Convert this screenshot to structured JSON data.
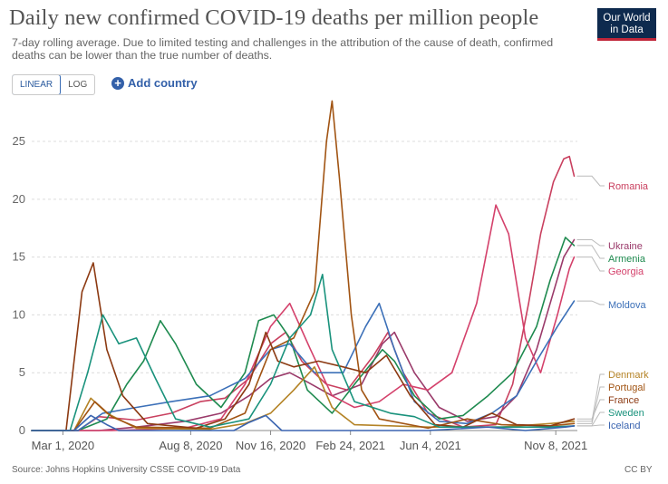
{
  "header": {
    "title": "Daily new confirmed COVID-19 deaths per million people",
    "subtitle": "7-day rolling average. Due to limited testing and challenges in the attribution of the cause of death, confirmed deaths can be lower than the true number of deaths.",
    "logo_line1": "Our World",
    "logo_line2": "in Data"
  },
  "controls": {
    "linear_label": "LINEAR",
    "log_label": "LOG",
    "add_country_label": "Add country",
    "add_icon": "plus-circle-icon"
  },
  "footer": {
    "source": "Source: Johns Hopkins University CSSE COVID-19 Data",
    "license": "CC BY"
  },
  "chart_data": {
    "type": "line",
    "title": "Daily new confirmed COVID-19 deaths per million people",
    "x_tick_labels": [
      "Mar 1, 2020",
      "Aug 8, 2020",
      "Nov 16, 2020",
      "Feb 24, 2021",
      "Jun 4, 2021",
      "Nov 8, 2021"
    ],
    "x_tick_dates": [
      "2020-03-01",
      "2020-08-08",
      "2020-11-16",
      "2021-02-24",
      "2021-06-04",
      "2021-11-08"
    ],
    "xlim": [
      "2020-01-22",
      "2021-12-05"
    ],
    "ylim": [
      0,
      29
    ],
    "y_ticks": [
      0,
      5,
      10,
      15,
      20,
      25
    ],
    "grid": "horizontal dashed",
    "legend": "right, line-end labels",
    "series": [
      {
        "name": "Romania",
        "color": "#c9405f",
        "points": [
          [
            "2020-01-22",
            0
          ],
          [
            "2020-03-20",
            0
          ],
          [
            "2020-04-15",
            1.2
          ],
          [
            "2020-06-01",
            0.9
          ],
          [
            "2020-07-15",
            1.5
          ],
          [
            "2020-08-20",
            2.5
          ],
          [
            "2020-09-20",
            2.8
          ],
          [
            "2020-10-20",
            4.5
          ],
          [
            "2020-11-16",
            7.5
          ],
          [
            "2020-12-05",
            8.5
          ],
          [
            "2020-12-25",
            6
          ],
          [
            "2021-01-25",
            4
          ],
          [
            "2021-02-20",
            3.5
          ],
          [
            "2021-03-25",
            6.5
          ],
          [
            "2021-04-12",
            8.5
          ],
          [
            "2021-05-01",
            5
          ],
          [
            "2021-06-01",
            1.5
          ],
          [
            "2021-07-15",
            0.3
          ],
          [
            "2021-08-25",
            0.5
          ],
          [
            "2021-09-15",
            4
          ],
          [
            "2021-10-05",
            11
          ],
          [
            "2021-10-20",
            17
          ],
          [
            "2021-11-05",
            21.5
          ],
          [
            "2021-11-18",
            23.5
          ],
          [
            "2021-11-25",
            23.7
          ],
          [
            "2021-12-01",
            22
          ]
        ]
      },
      {
        "name": "Ukraine",
        "color": "#9a3a6a",
        "points": [
          [
            "2020-01-22",
            0
          ],
          [
            "2020-04-15",
            0
          ],
          [
            "2020-06-01",
            0.3
          ],
          [
            "2020-08-01",
            0.8
          ],
          [
            "2020-09-15",
            1.5
          ],
          [
            "2020-10-20",
            3
          ],
          [
            "2020-11-16",
            4.5
          ],
          [
            "2020-12-10",
            5
          ],
          [
            "2021-01-01",
            4.2
          ],
          [
            "2021-02-01",
            3
          ],
          [
            "2021-03-10",
            4
          ],
          [
            "2021-04-05",
            7.5
          ],
          [
            "2021-04-20",
            8.5
          ],
          [
            "2021-05-15",
            5
          ],
          [
            "2021-06-15",
            2
          ],
          [
            "2021-07-20",
            0.8
          ],
          [
            "2021-08-25",
            1.2
          ],
          [
            "2021-09-20",
            3
          ],
          [
            "2021-10-15",
            7
          ],
          [
            "2021-11-01",
            11
          ],
          [
            "2021-11-18",
            15
          ],
          [
            "2021-12-01",
            16.5
          ]
        ]
      },
      {
        "name": "Armenia",
        "color": "#1e8a4f",
        "points": [
          [
            "2020-01-22",
            0
          ],
          [
            "2020-03-20",
            0
          ],
          [
            "2020-04-25",
            1
          ],
          [
            "2020-05-20",
            4
          ],
          [
            "2020-06-10",
            6
          ],
          [
            "2020-07-01",
            9.5
          ],
          [
            "2020-07-20",
            7.5
          ],
          [
            "2020-08-15",
            4
          ],
          [
            "2020-09-15",
            2
          ],
          [
            "2020-10-15",
            5
          ],
          [
            "2020-11-01",
            9.5
          ],
          [
            "2020-11-20",
            10
          ],
          [
            "2020-12-10",
            8
          ],
          [
            "2021-01-01",
            3.5
          ],
          [
            "2021-02-01",
            1.5
          ],
          [
            "2021-03-01",
            4
          ],
          [
            "2021-04-05",
            7
          ],
          [
            "2021-04-20",
            6
          ],
          [
            "2021-05-15",
            3
          ],
          [
            "2021-06-15",
            1
          ],
          [
            "2021-07-15",
            1.3
          ],
          [
            "2021-08-15",
            3
          ],
          [
            "2021-09-15",
            5
          ],
          [
            "2021-10-15",
            9
          ],
          [
            "2021-11-01",
            13
          ],
          [
            "2021-11-20",
            16.7
          ],
          [
            "2021-12-01",
            16
          ]
        ]
      },
      {
        "name": "Georgia",
        "color": "#d4416b",
        "points": [
          [
            "2020-01-22",
            0
          ],
          [
            "2020-05-01",
            0
          ],
          [
            "2020-08-01",
            0.2
          ],
          [
            "2020-09-15",
            1
          ],
          [
            "2020-10-15",
            4
          ],
          [
            "2020-11-16",
            9
          ],
          [
            "2020-12-10",
            11
          ],
          [
            "2021-01-05",
            7
          ],
          [
            "2021-02-01",
            3
          ],
          [
            "2021-03-01",
            2
          ],
          [
            "2021-04-01",
            2.5
          ],
          [
            "2021-05-01",
            4
          ],
          [
            "2021-06-01",
            3.5
          ],
          [
            "2021-07-01",
            5
          ],
          [
            "2021-08-01",
            11
          ],
          [
            "2021-08-25",
            19.5
          ],
          [
            "2021-09-10",
            17
          ],
          [
            "2021-10-01",
            8
          ],
          [
            "2021-10-20",
            5
          ],
          [
            "2021-11-10",
            10
          ],
          [
            "2021-11-25",
            14
          ],
          [
            "2021-12-01",
            15
          ]
        ]
      },
      {
        "name": "Moldova",
        "color": "#3c70b8",
        "points": [
          [
            "2020-01-22",
            0
          ],
          [
            "2020-03-20",
            0
          ],
          [
            "2020-04-20",
            1.5
          ],
          [
            "2020-06-01",
            2
          ],
          [
            "2020-07-15",
            2.5
          ],
          [
            "2020-09-01",
            3
          ],
          [
            "2020-10-15",
            4.5
          ],
          [
            "2020-11-16",
            7
          ],
          [
            "2020-12-10",
            7.5
          ],
          [
            "2021-01-10",
            5
          ],
          [
            "2021-02-15",
            5
          ],
          [
            "2021-03-15",
            9
          ],
          [
            "2021-04-01",
            11
          ],
          [
            "2021-04-20",
            7
          ],
          [
            "2021-05-15",
            2.5
          ],
          [
            "2021-06-15",
            0.8
          ],
          [
            "2021-07-20",
            0.6
          ],
          [
            "2021-08-20",
            1.5
          ],
          [
            "2021-09-20",
            3
          ],
          [
            "2021-10-15",
            6
          ],
          [
            "2021-11-10",
            9
          ],
          [
            "2021-12-01",
            11.2
          ]
        ]
      },
      {
        "name": "Denmark",
        "color": "#b48326",
        "points": [
          [
            "2020-01-22",
            0
          ],
          [
            "2020-03-15",
            0
          ],
          [
            "2020-04-05",
            2.8
          ],
          [
            "2020-04-25",
            1.5
          ],
          [
            "2020-06-01",
            0.2
          ],
          [
            "2020-09-01",
            0.1
          ],
          [
            "2020-10-15",
            0.6
          ],
          [
            "2020-11-16",
            1.5
          ],
          [
            "2020-12-15",
            3.5
          ],
          [
            "2021-01-10",
            5.5
          ],
          [
            "2021-02-01",
            2
          ],
          [
            "2021-03-01",
            0.5
          ],
          [
            "2021-06-01",
            0.3
          ],
          [
            "2021-09-01",
            0.3
          ],
          [
            "2021-11-01",
            0.6
          ],
          [
            "2021-12-01",
            0.8
          ]
        ]
      },
      {
        "name": "Portugal",
        "color": "#a15413",
        "points": [
          [
            "2020-01-22",
            0
          ],
          [
            "2020-03-15",
            0
          ],
          [
            "2020-04-10",
            2.5
          ],
          [
            "2020-05-01",
            1.2
          ],
          [
            "2020-06-01",
            0.3
          ],
          [
            "2020-09-01",
            0.2
          ],
          [
            "2020-10-15",
            1.5
          ],
          [
            "2020-11-16",
            7
          ],
          [
            "2020-12-15",
            8
          ],
          [
            "2021-01-10",
            12
          ],
          [
            "2021-01-25",
            25
          ],
          [
            "2021-02-01",
            28.5
          ],
          [
            "2021-02-10",
            22
          ],
          [
            "2021-02-25",
            10
          ],
          [
            "2021-03-10",
            3.5
          ],
          [
            "2021-04-01",
            1
          ],
          [
            "2021-06-01",
            0.2
          ],
          [
            "2021-07-20",
            1
          ],
          [
            "2021-09-01",
            0.5
          ],
          [
            "2021-11-01",
            0.4
          ],
          [
            "2021-12-01",
            0.6
          ]
        ]
      },
      {
        "name": "France",
        "color": "#8c3a12",
        "points": [
          [
            "2020-01-22",
            0
          ],
          [
            "2020-03-05",
            0
          ],
          [
            "2020-03-25",
            12
          ],
          [
            "2020-04-08",
            14.5
          ],
          [
            "2020-04-25",
            7
          ],
          [
            "2020-05-15",
            3
          ],
          [
            "2020-06-15",
            0.6
          ],
          [
            "2020-08-15",
            0.2
          ],
          [
            "2020-09-20",
            1
          ],
          [
            "2020-10-20",
            4
          ],
          [
            "2020-11-10",
            8.5
          ],
          [
            "2020-11-25",
            6
          ],
          [
            "2020-12-15",
            5.5
          ],
          [
            "2021-01-15",
            6
          ],
          [
            "2021-02-15",
            5.5
          ],
          [
            "2021-03-15",
            5
          ],
          [
            "2021-04-10",
            6.5
          ],
          [
            "2021-05-10",
            3
          ],
          [
            "2021-06-10",
            0.5
          ],
          [
            "2021-07-15",
            0.3
          ],
          [
            "2021-08-20",
            1.5
          ],
          [
            "2021-09-20",
            0.5
          ],
          [
            "2021-11-01",
            0.4
          ],
          [
            "2021-12-01",
            1
          ]
        ]
      },
      {
        "name": "Sweden",
        "color": "#19927c",
        "points": [
          [
            "2020-01-22",
            0
          ],
          [
            "2020-03-10",
            0
          ],
          [
            "2020-04-01",
            5
          ],
          [
            "2020-04-20",
            10
          ],
          [
            "2020-05-10",
            7.5
          ],
          [
            "2020-06-01",
            8
          ],
          [
            "2020-06-25",
            4.5
          ],
          [
            "2020-07-20",
            1
          ],
          [
            "2020-09-01",
            0.3
          ],
          [
            "2020-10-20",
            1
          ],
          [
            "2020-11-16",
            4
          ],
          [
            "2020-12-10",
            8
          ],
          [
            "2021-01-05",
            10
          ],
          [
            "2021-01-20",
            13.5
          ],
          [
            "2021-02-01",
            7
          ],
          [
            "2021-03-01",
            2.5
          ],
          [
            "2021-04-15",
            1.5
          ],
          [
            "2021-05-15",
            1.2
          ],
          [
            "2021-06-15",
            0.3
          ],
          [
            "2021-09-01",
            0.3
          ],
          [
            "2021-11-01",
            0.3
          ],
          [
            "2021-12-01",
            0.4
          ]
        ]
      },
      {
        "name": "Iceland",
        "color": "#3a64b0",
        "points": [
          [
            "2020-01-22",
            0
          ],
          [
            "2020-03-15",
            0
          ],
          [
            "2020-04-05",
            1.3
          ],
          [
            "2020-04-25",
            0.5
          ],
          [
            "2020-05-10",
            0
          ],
          [
            "2020-10-01",
            0
          ],
          [
            "2020-10-20",
            0.7
          ],
          [
            "2020-11-10",
            1.3
          ],
          [
            "2020-11-30",
            0
          ],
          [
            "2021-06-01",
            0
          ],
          [
            "2021-08-15",
            0.3
          ],
          [
            "2021-10-01",
            0
          ],
          [
            "2021-11-20",
            0.3
          ],
          [
            "2021-12-01",
            0.4
          ]
        ]
      }
    ]
  }
}
